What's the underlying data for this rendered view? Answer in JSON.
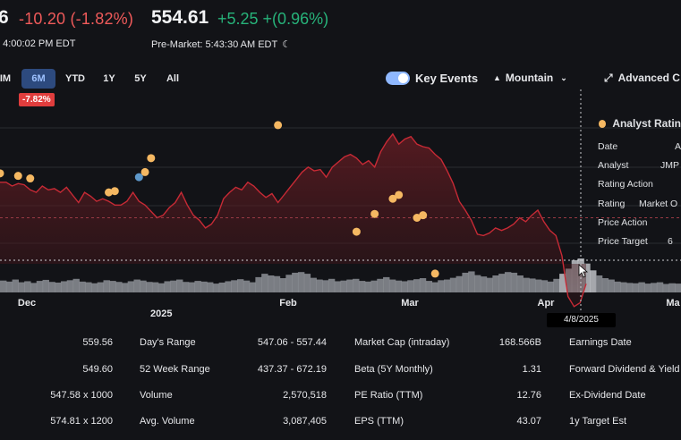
{
  "quote": {
    "price_partial": "6",
    "change": "-10.20 (-1.82%)",
    "as_of": "t 4:00:02 PM EDT",
    "premarket_price": "554.61",
    "premarket_change": "+5.25 +(0.96%)",
    "premarket_time": "Pre-Market: 5:43:30 AM EDT"
  },
  "range_tabs": [
    {
      "label": "IM"
    },
    {
      "label": "6M",
      "active": true
    },
    {
      "label": "YTD"
    },
    {
      "label": "1Y"
    },
    {
      "label": "5Y"
    },
    {
      "label": "All"
    }
  ],
  "range_change_badge": "-7.82%",
  "controls": {
    "key_events_label": "Key Events",
    "chart_type_label": "Mountain",
    "advanced_label": "Advanced C"
  },
  "chart_data": {
    "type": "area",
    "x_ticks": [
      "Dec",
      "Feb",
      "Mar",
      "Apr",
      "Ma"
    ],
    "year_label": "2025",
    "hover_date": "4/8/2025",
    "price_series": [
      598,
      598,
      595,
      597,
      596,
      592,
      590,
      595,
      592,
      593,
      590,
      594,
      588,
      582,
      590,
      587,
      583,
      585,
      583,
      580,
      580,
      583,
      590,
      583,
      580,
      575,
      570,
      572,
      578,
      582,
      590,
      580,
      572,
      568,
      562,
      565,
      572,
      585,
      590,
      594,
      592,
      598,
      595,
      590,
      586,
      589,
      582,
      588,
      594,
      600,
      606,
      610,
      607,
      608,
      602,
      610,
      614,
      618,
      620,
      617,
      612,
      615,
      610,
      622,
      630,
      636,
      628,
      632,
      634,
      628,
      626,
      625,
      620,
      616,
      607,
      597,
      583,
      576,
      568,
      557,
      556,
      558,
      562,
      560,
      562,
      565,
      570,
      567,
      572,
      576,
      567,
      560,
      556,
      540,
      508,
      500,
      503,
      518
    ],
    "volume_series": [
      0.35,
      0.32,
      0.38,
      0.3,
      0.33,
      0.28,
      0.34,
      0.37,
      0.31,
      0.29,
      0.33,
      0.36,
      0.4,
      0.32,
      0.3,
      0.27,
      0.3,
      0.36,
      0.34,
      0.31,
      0.28,
      0.33,
      0.38,
      0.35,
      0.31,
      0.3,
      0.27,
      0.33,
      0.35,
      0.38,
      0.31,
      0.3,
      0.34,
      0.32,
      0.3,
      0.26,
      0.29,
      0.33,
      0.36,
      0.39,
      0.35,
      0.3,
      0.45,
      0.55,
      0.5,
      0.48,
      0.42,
      0.52,
      0.58,
      0.6,
      0.55,
      0.43,
      0.38,
      0.36,
      0.4,
      0.33,
      0.35,
      0.38,
      0.4,
      0.34,
      0.32,
      0.35,
      0.4,
      0.45,
      0.38,
      0.35,
      0.33,
      0.36,
      0.39,
      0.42,
      0.34,
      0.3,
      0.36,
      0.38,
      0.43,
      0.48,
      0.58,
      0.62,
      0.51,
      0.47,
      0.43,
      0.5,
      0.55,
      0.6,
      0.58,
      0.5,
      0.43,
      0.41,
      0.38,
      0.36,
      0.32,
      0.4,
      0.55,
      0.7,
      0.95,
      1.0,
      0.85,
      0.65,
      0.5,
      0.42,
      0.38,
      0.32,
      0.3,
      0.28,
      0.27,
      0.3,
      0.26,
      0.28,
      0.3,
      0.25,
      0.27,
      0.26
    ],
    "events": [
      {
        "idx": 0,
        "price": 605,
        "color": "#f5b862"
      },
      {
        "idx": 3,
        "price": 603,
        "color": "#f5b862"
      },
      {
        "idx": 5,
        "price": 601,
        "color": "#f5b862"
      },
      {
        "idx": 18,
        "price": 590,
        "color": "#f5b862"
      },
      {
        "idx": 19,
        "price": 591,
        "color": "#f5b862"
      },
      {
        "idx": 23,
        "price": 602,
        "color": "#5d97c9"
      },
      {
        "idx": 24,
        "price": 606,
        "color": "#f5b862"
      },
      {
        "idx": 25,
        "price": 617,
        "color": "#f5b862"
      },
      {
        "idx": 46,
        "price": 643,
        "color": "#f5b862"
      },
      {
        "idx": 59,
        "price": 559,
        "color": "#f5b862"
      },
      {
        "idx": 62,
        "price": 573,
        "color": "#f5b862"
      },
      {
        "idx": 65,
        "price": 585,
        "color": "#f5b862"
      },
      {
        "idx": 66,
        "price": 588,
        "color": "#f5b862"
      },
      {
        "idx": 69,
        "price": 570,
        "color": "#f5b862"
      },
      {
        "idx": 70,
        "price": 572,
        "color": "#f5b862"
      },
      {
        "idx": 72,
        "price": 526,
        "color": "#f5b862"
      }
    ],
    "prev_close_ref": 570,
    "ylim": [
      490,
      650
    ]
  },
  "tooltip": {
    "title": "Analyst Ratin",
    "rows": [
      {
        "key": "Date",
        "value": "A"
      },
      {
        "key": "Analyst",
        "value": "JMP"
      },
      {
        "key": "Rating Action",
        "value": ""
      },
      {
        "key": "Rating",
        "value": "Market O"
      },
      {
        "key": "Price Action",
        "value": ""
      },
      {
        "key": "Price Target",
        "value": "6"
      }
    ]
  },
  "stats": {
    "rows": [
      {
        "c1v": "559.56",
        "c2k": "Day's Range",
        "c2v": "547.06 - 557.44",
        "c3k": "Market Cap (intraday)",
        "c3v": "168.566B",
        "c4k": "Earnings Date"
      },
      {
        "c1v": "549.60",
        "c2k": "52 Week Range",
        "c2v": "437.37 - 672.19",
        "c3k": "Beta (5Y Monthly)",
        "c3v": "1.31",
        "c4k": "Forward Dividend & Yield"
      },
      {
        "c1v": "547.58 x 1000",
        "c2k": "Volume",
        "c2v": "2,570,518",
        "c3k": "PE Ratio (TTM)",
        "c3v": "12.76",
        "c4k": "Ex-Dividend Date"
      },
      {
        "c1v": "574.81 x 1200",
        "c2k": "Avg. Volume",
        "c2v": "3,087,405",
        "c3k": "EPS (TTM)",
        "c3v": "43.07",
        "c4k": "1y Target Est"
      }
    ]
  }
}
